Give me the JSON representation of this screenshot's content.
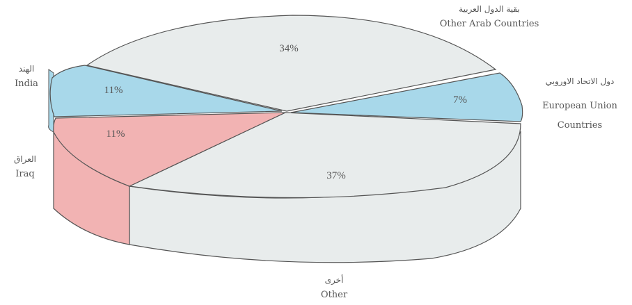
{
  "chart_data": {
    "type": "pie",
    "style": "3d-exploded",
    "slices": [
      {
        "label_ar": "بقية الدول العربية",
        "label_en": "Other Arab Countries",
        "value": 34,
        "value_label": "34%",
        "color": "#e8ecec"
      },
      {
        "label_ar": "دول الاتحاد الاوروبي",
        "label_en": "European Union Countries",
        "label_en_lines": [
          "European Union",
          "Countries"
        ],
        "value": 7,
        "value_label": "7%",
        "color": "#a8d8ea"
      },
      {
        "label_ar": "أخرى",
        "label_en": "Other",
        "value": 37,
        "value_label": "37%",
        "color": "#e8ecec"
      },
      {
        "label_ar": "العراق",
        "label_en": "Iraq",
        "value": 11,
        "value_label": "11%",
        "color": "#f2b3b3"
      },
      {
        "label_ar": "الهند",
        "label_en": "India",
        "value": 11,
        "value_label": "11%",
        "color": "#a8d8ea"
      }
    ]
  }
}
